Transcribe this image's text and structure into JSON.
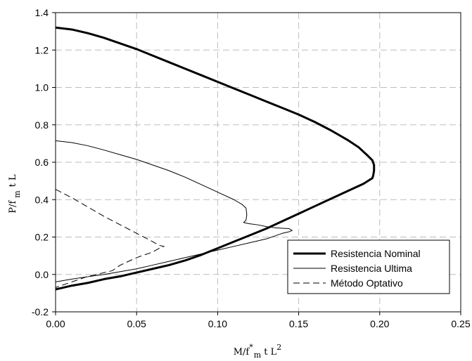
{
  "chart_data": {
    "type": "line",
    "xlabel": "M/f*m t L2",
    "xlabel_parts": {
      "base": "M/f",
      "sup1": "*",
      "sub": "m",
      "mid": " t L",
      "sup2": "2"
    },
    "ylabel": "P/f m t L",
    "ylabel_parts": {
      "base": "P/f",
      "sub": "m",
      "rest": "t L"
    },
    "xlim": [
      0,
      0.25
    ],
    "ylim": [
      -0.2,
      1.4
    ],
    "x_ticks": [
      "0.00",
      "0.05",
      "0.10",
      "0.15",
      "0.20",
      "0.25"
    ],
    "y_ticks": [
      "-0.2",
      "0.0",
      "0.2",
      "0.4",
      "0.6",
      "0.8",
      "1.0",
      "1.2",
      "1.4"
    ],
    "x_tick_values": [
      0,
      0.05,
      0.1,
      0.15,
      0.2,
      0.25
    ],
    "y_tick_values": [
      -0.2,
      0,
      0.2,
      0.4,
      0.6,
      0.8,
      1.0,
      1.2,
      1.4
    ],
    "grid": true,
    "legend_position": "bottom-right",
    "series": [
      {
        "name": "Resistencia Nominal",
        "style": "solid-thick",
        "color": "#000000",
        "points": [
          [
            0.0,
            1.32
          ],
          [
            0.01,
            1.31
          ],
          [
            0.02,
            1.29
          ],
          [
            0.03,
            1.265
          ],
          [
            0.04,
            1.235
          ],
          [
            0.05,
            1.205
          ],
          [
            0.06,
            1.17
          ],
          [
            0.07,
            1.135
          ],
          [
            0.08,
            1.1
          ],
          [
            0.09,
            1.065
          ],
          [
            0.1,
            1.03
          ],
          [
            0.11,
            0.995
          ],
          [
            0.12,
            0.96
          ],
          [
            0.13,
            0.925
          ],
          [
            0.14,
            0.89
          ],
          [
            0.15,
            0.855
          ],
          [
            0.16,
            0.815
          ],
          [
            0.17,
            0.77
          ],
          [
            0.18,
            0.72
          ],
          [
            0.187,
            0.68
          ],
          [
            0.192,
            0.64
          ],
          [
            0.1955,
            0.61
          ],
          [
            0.1965,
            0.585
          ],
          [
            0.1965,
            0.555
          ],
          [
            0.196,
            0.53
          ],
          [
            0.1955,
            0.515
          ],
          [
            0.19,
            0.485
          ],
          [
            0.18,
            0.445
          ],
          [
            0.17,
            0.405
          ],
          [
            0.16,
            0.365
          ],
          [
            0.15,
            0.325
          ],
          [
            0.14,
            0.285
          ],
          [
            0.13,
            0.245
          ],
          [
            0.12,
            0.21
          ],
          [
            0.11,
            0.175
          ],
          [
            0.1,
            0.14
          ],
          [
            0.09,
            0.105
          ],
          [
            0.08,
            0.075
          ],
          [
            0.07,
            0.05
          ],
          [
            0.06,
            0.03
          ],
          [
            0.05,
            0.01
          ],
          [
            0.04,
            -0.01
          ],
          [
            0.03,
            -0.025
          ],
          [
            0.02,
            -0.045
          ],
          [
            0.01,
            -0.06
          ],
          [
            0.0,
            -0.08
          ]
        ]
      },
      {
        "name": "Resistencia Ultima",
        "style": "solid-thin",
        "color": "#000000",
        "points": [
          [
            0.0,
            0.715
          ],
          [
            0.01,
            0.705
          ],
          [
            0.02,
            0.688
          ],
          [
            0.03,
            0.665
          ],
          [
            0.04,
            0.64
          ],
          [
            0.05,
            0.615
          ],
          [
            0.06,
            0.585
          ],
          [
            0.07,
            0.555
          ],
          [
            0.08,
            0.52
          ],
          [
            0.09,
            0.48
          ],
          [
            0.1,
            0.44
          ],
          [
            0.11,
            0.4
          ],
          [
            0.115,
            0.375
          ],
          [
            0.1175,
            0.355
          ],
          [
            0.118,
            0.32
          ],
          [
            0.1175,
            0.29
          ],
          [
            0.116,
            0.278
          ],
          [
            0.119,
            0.272
          ],
          [
            0.125,
            0.265
          ],
          [
            0.13,
            0.256
          ],
          [
            0.135,
            0.25
          ],
          [
            0.14,
            0.247
          ],
          [
            0.144,
            0.245
          ],
          [
            0.146,
            0.235
          ],
          [
            0.144,
            0.228
          ],
          [
            0.14,
            0.22
          ],
          [
            0.135,
            0.205
          ],
          [
            0.13,
            0.19
          ],
          [
            0.12,
            0.17
          ],
          [
            0.11,
            0.15
          ],
          [
            0.1,
            0.13
          ],
          [
            0.09,
            0.11
          ],
          [
            0.08,
            0.09
          ],
          [
            0.07,
            0.07
          ],
          [
            0.06,
            0.05
          ],
          [
            0.05,
            0.03
          ],
          [
            0.04,
            0.015
          ],
          [
            0.03,
            0.0
          ],
          [
            0.02,
            -0.012
          ],
          [
            0.01,
            -0.025
          ],
          [
            0.0,
            -0.04
          ]
        ]
      },
      {
        "name": "Método Optativo",
        "style": "dashed",
        "color": "#000000",
        "points": [
          [
            0.0,
            0.455
          ],
          [
            0.01,
            0.41
          ],
          [
            0.02,
            0.36
          ],
          [
            0.03,
            0.31
          ],
          [
            0.04,
            0.265
          ],
          [
            0.05,
            0.22
          ],
          [
            0.06,
            0.175
          ],
          [
            0.064,
            0.155
          ],
          [
            0.067,
            0.15
          ],
          [
            0.065,
            0.145
          ],
          [
            0.06,
            0.12
          ],
          [
            0.05,
            0.09
          ],
          [
            0.04,
            0.05
          ],
          [
            0.035,
            0.02
          ],
          [
            0.03,
            0.01
          ],
          [
            0.02,
            -0.01
          ],
          [
            0.01,
            -0.04
          ],
          [
            0.0,
            -0.07
          ]
        ]
      }
    ]
  }
}
